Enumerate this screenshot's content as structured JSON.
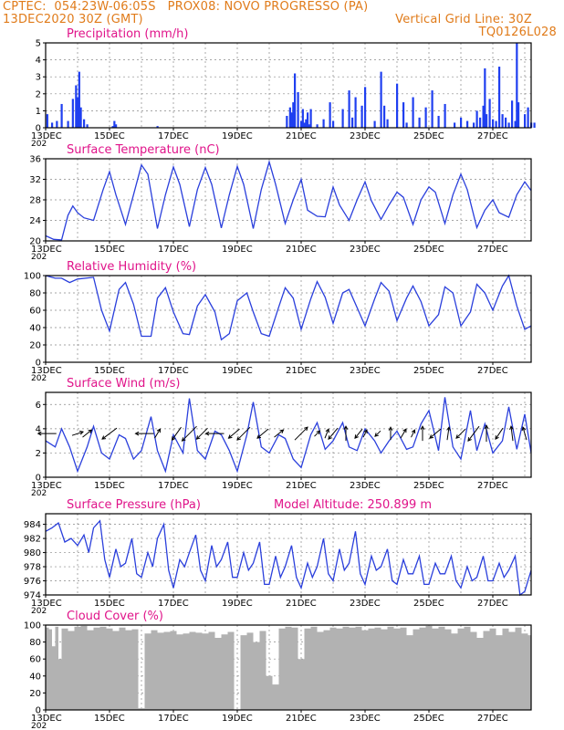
{
  "header": {
    "left_line1": "CPTEC:  054:23W-06:05S   PROX08: NOVO PROGRESSO (PA)",
    "left_line2": "13DEC2020 30Z (GMT)",
    "right_line2": "Vertical Grid Line: 30Z",
    "right_line3": "TQ0126L028"
  },
  "colors": {
    "header": "#e07b1a",
    "title": "#e0148a",
    "line": "#2a3fdc",
    "bar": "#1f3ff0",
    "cloud": "#b2b2b2",
    "grid": "#888888"
  },
  "x_axis": {
    "ticks": [
      "13DEC",
      "15DEC",
      "17DEC",
      "19DEC",
      "21DEC",
      "23DEC",
      "25DEC",
      "27DEC"
    ],
    "year_fragment": "202"
  },
  "panels": {
    "precip": {
      "title": "Precipitation (mm/h)",
      "yticks": [
        "0",
        "1",
        "2",
        "3",
        "4",
        "5"
      ]
    },
    "temp": {
      "title": "Surface Temperature (nC)",
      "yticks": [
        "20",
        "24",
        "28",
        "32",
        "36"
      ]
    },
    "rh": {
      "title": "Relative Humidity (%)",
      "yticks": [
        "0",
        "20",
        "40",
        "60",
        "80",
        "100"
      ]
    },
    "wind": {
      "title": "Surface Wind (m/s)",
      "yticks": [
        "0",
        "2",
        "4",
        "6"
      ]
    },
    "pres": {
      "title": "Surface Pressure (hPa)",
      "subtitle": "Model Altitude: 250.899 m",
      "yticks": [
        "974",
        "976",
        "978",
        "980",
        "982",
        "984"
      ]
    },
    "cloud": {
      "title": "Cloud Cover (%)",
      "yticks": [
        "0",
        "20",
        "40",
        "60",
        "80",
        "100"
      ]
    }
  },
  "chart_data": [
    {
      "type": "bar",
      "name": "precipitation",
      "x_unit": "days since 13DEC 00Z",
      "ylim": [
        0,
        5
      ],
      "x": [
        0.05,
        0.2,
        0.35,
        0.5,
        0.7,
        0.85,
        0.95,
        1.0,
        1.05,
        1.1,
        1.2,
        1.3,
        2.1,
        2.15,
        2.2,
        3.5,
        7.55,
        7.65,
        7.7,
        7.75,
        7.8,
        7.9,
        8.0,
        8.05,
        8.1,
        8.15,
        8.2,
        8.25,
        8.3,
        8.5,
        8.7,
        8.9,
        9.0,
        9.3,
        9.5,
        9.6,
        9.7,
        9.9,
        10.0,
        10.3,
        10.5,
        10.6,
        10.7,
        11.0,
        11.2,
        11.3,
        11.5,
        11.7,
        11.9,
        12.1,
        12.3,
        12.5,
        12.8,
        13.0,
        13.2,
        13.4,
        13.5,
        13.6,
        13.7,
        13.75,
        13.8,
        13.9,
        14.0,
        14.1,
        14.2,
        14.3,
        14.4,
        14.5,
        14.6,
        14.7,
        14.75,
        14.8,
        15.0,
        15.1,
        15.2,
        15.3
      ],
      "values": [
        0.8,
        0.3,
        0.4,
        1.4,
        0.4,
        1.7,
        2.5,
        1.8,
        3.3,
        1.2,
        0.5,
        0.2,
        0.1,
        0.4,
        0.2,
        0.1,
        0.7,
        1.2,
        0.9,
        1.5,
        3.2,
        2.1,
        0.4,
        1.1,
        0.3,
        0.5,
        0.9,
        0.2,
        1.1,
        0.2,
        0.5,
        1.5,
        0.4,
        1.1,
        2.2,
        0.6,
        1.8,
        1.3,
        2.4,
        0.4,
        3.3,
        1.3,
        0.5,
        2.6,
        1.5,
        0.3,
        1.8,
        0.6,
        1.2,
        2.2,
        0.7,
        1.4,
        0.3,
        0.6,
        0.4,
        0.3,
        1.0,
        0.6,
        1.3,
        3.5,
        0.8,
        1.7,
        0.5,
        0.4,
        3.6,
        0.8,
        0.6,
        0.3,
        1.6,
        0.4,
        5.0,
        1.5,
        0.8,
        1.2,
        0.3,
        0.3
      ]
    },
    {
      "type": "line",
      "name": "surface temperature",
      "x_unit": "days since 13DEC 00Z",
      "ylim": [
        20,
        36
      ],
      "x": [
        0,
        0.25,
        0.5,
        0.7,
        0.85,
        1.0,
        1.2,
        1.5,
        1.8,
        2.0,
        2.2,
        2.5,
        2.75,
        3.0,
        3.2,
        3.5,
        3.75,
        4.0,
        4.2,
        4.5,
        4.75,
        5.0,
        5.2,
        5.5,
        5.75,
        6.0,
        6.2,
        6.5,
        6.75,
        7.0,
        7.2,
        7.5,
        7.75,
        8.0,
        8.2,
        8.5,
        8.75,
        9.0,
        9.2,
        9.5,
        9.75,
        10.0,
        10.2,
        10.5,
        10.75,
        11.0,
        11.2,
        11.5,
        11.75,
        12.0,
        12.2,
        12.5,
        12.75,
        13.0,
        13.2,
        13.5,
        13.75,
        14.0,
        14.2,
        14.5,
        14.75,
        15.0,
        15.2
      ],
      "values": [
        21,
        20.3,
        20.2,
        25,
        26.8,
        25.5,
        24.5,
        24,
        30,
        33.5,
        29,
        23.2,
        29,
        34.8,
        33,
        22.4,
        29,
        34.4,
        31,
        22.8,
        30,
        34.3,
        31,
        22.5,
        29,
        34.5,
        31,
        22.4,
        30,
        35.4,
        31,
        23.4,
        28,
        32,
        26,
        24.8,
        24.7,
        30.5,
        27,
        24,
        28,
        31.5,
        27.8,
        24.2,
        27,
        29.5,
        28.5,
        23.2,
        28,
        30.5,
        29.5,
        23.4,
        29,
        33,
        30,
        22.6,
        26,
        28,
        25.5,
        24.6,
        29,
        31.5,
        29.8
      ]
    },
    {
      "type": "line",
      "name": "relative humidity",
      "x_unit": "days since 13DEC 00Z",
      "ylim": [
        0,
        100
      ],
      "x": [
        0,
        0.3,
        0.5,
        0.75,
        1.0,
        1.5,
        1.75,
        2.0,
        2.3,
        2.5,
        2.75,
        3.0,
        3.3,
        3.5,
        3.75,
        4.0,
        4.3,
        4.5,
        4.75,
        5.0,
        5.3,
        5.5,
        5.75,
        6.0,
        6.3,
        6.5,
        6.75,
        7.0,
        7.3,
        7.5,
        7.75,
        8.0,
        8.3,
        8.5,
        8.75,
        9.0,
        9.3,
        9.5,
        9.75,
        10.0,
        10.3,
        10.5,
        10.75,
        11.0,
        11.3,
        11.5,
        11.75,
        12.0,
        12.3,
        12.5,
        12.75,
        13.0,
        13.3,
        13.5,
        13.75,
        14.0,
        14.3,
        14.5,
        14.75,
        15.0,
        15.2
      ],
      "values": [
        100,
        97,
        97,
        92,
        96,
        98,
        60,
        36,
        84,
        92,
        67,
        30,
        30,
        74,
        86,
        58,
        33,
        32,
        65,
        78,
        58,
        26,
        33,
        71,
        80,
        58,
        33,
        30,
        64,
        86,
        74,
        38,
        73,
        93,
        75,
        45,
        80,
        84,
        63,
        42,
        73,
        92,
        82,
        48,
        74,
        88,
        70,
        42,
        55,
        87,
        80,
        42,
        58,
        90,
        80,
        60,
        88,
        100,
        65,
        38,
        42
      ]
    },
    {
      "type": "line",
      "name": "surface wind speed",
      "x_unit": "days since 13DEC 00Z",
      "ylim": [
        0,
        7
      ],
      "x": [
        0,
        0.3,
        0.5,
        0.75,
        1.0,
        1.3,
        1.5,
        1.75,
        2.0,
        2.3,
        2.5,
        2.75,
        3.0,
        3.3,
        3.5,
        3.75,
        4.0,
        4.3,
        4.5,
        4.75,
        5.0,
        5.3,
        5.5,
        5.75,
        6.0,
        6.3,
        6.5,
        6.75,
        7.0,
        7.3,
        7.5,
        7.75,
        8.0,
        8.3,
        8.5,
        8.75,
        9.0,
        9.3,
        9.5,
        9.75,
        10.0,
        10.3,
        10.5,
        10.75,
        11.0,
        11.3,
        11.5,
        11.75,
        12.0,
        12.3,
        12.5,
        12.75,
        13.0,
        13.3,
        13.5,
        13.75,
        14.0,
        14.3,
        14.5,
        14.75,
        15.0,
        15.2
      ],
      "values": [
        3,
        2.5,
        4,
        2.5,
        0.5,
        2.5,
        4.2,
        2,
        1.5,
        3.5,
        3.2,
        1.5,
        2.2,
        5,
        2.2,
        0.5,
        3.5,
        2,
        6.5,
        2.2,
        1.5,
        3.8,
        3.5,
        2.2,
        0.5,
        3.5,
        6.2,
        2.5,
        2,
        3.5,
        3.2,
        1.5,
        0.8,
        3.5,
        4.5,
        2.3,
        3,
        4.5,
        2.5,
        2.2,
        4,
        3,
        2,
        3,
        3.8,
        2.3,
        2.5,
        4.4,
        5.5,
        2.2,
        6.6,
        2.5,
        1.5,
        5.5,
        2.2,
        4.4,
        2,
        3,
        5.8,
        2.3,
        5.2,
        2
      ],
      "arrows_x": [
        0.05,
        1.0,
        1.3,
        2.0,
        3.1,
        3.5,
        4.1,
        4.5,
        4.9,
        5.3,
        5.9,
        6.2,
        6.8,
        7.3,
        8.0,
        8.5,
        8.8,
        9.0,
        9.4,
        9.8,
        10.0,
        10.4,
        10.8,
        11.2,
        11.5,
        11.8,
        12.2,
        12.6,
        13.0,
        13.4,
        13.8,
        14.2,
        14.6,
        15.0
      ],
      "arrows_u": [
        -1,
        0.6,
        0.5,
        -0.8,
        -1,
        0.3,
        -0.5,
        -0.8,
        -0.6,
        -1,
        -0.6,
        -0.7,
        -0.6,
        0.5,
        0.7,
        0.3,
        0.2,
        -0.5,
        0,
        -0.4,
        0.2,
        -0.3,
        0,
        0.3,
        0.2,
        0,
        -0.6,
        0.1,
        -0.5,
        -0.6,
        0,
        -0.4,
        -0.1,
        -0.2
      ],
      "arrows_v": [
        0,
        0.2,
        0.4,
        -0.6,
        0,
        0.5,
        -0.7,
        -0.8,
        -0.6,
        0,
        -0.5,
        -0.7,
        -0.5,
        0.4,
        0.7,
        0.3,
        0.5,
        -0.6,
        0.8,
        -0.5,
        0.4,
        -0.3,
        0.7,
        0.5,
        0.4,
        0.8,
        -0.5,
        0.7,
        -0.5,
        -0.8,
        0.9,
        -0.6,
        0.8,
        0.7
      ]
    },
    {
      "type": "line",
      "name": "surface pressure",
      "x_unit": "days since 13DEC 00Z",
      "ylim": [
        974,
        985.5
      ],
      "x": [
        0,
        0.2,
        0.4,
        0.6,
        0.8,
        1.0,
        1.2,
        1.35,
        1.5,
        1.7,
        1.85,
        2.0,
        2.2,
        2.35,
        2.5,
        2.7,
        2.85,
        3.0,
        3.2,
        3.35,
        3.5,
        3.7,
        3.85,
        4.0,
        4.2,
        4.35,
        4.5,
        4.7,
        4.85,
        5.0,
        5.2,
        5.35,
        5.5,
        5.7,
        5.85,
        6.0,
        6.2,
        6.35,
        6.5,
        6.7,
        6.85,
        7.0,
        7.2,
        7.35,
        7.5,
        7.7,
        7.85,
        8.0,
        8.2,
        8.35,
        8.5,
        8.7,
        8.85,
        9.0,
        9.2,
        9.35,
        9.5,
        9.7,
        9.85,
        10.0,
        10.2,
        10.35,
        10.5,
        10.7,
        10.85,
        11.0,
        11.2,
        11.35,
        11.5,
        11.7,
        11.85,
        12.0,
        12.2,
        12.35,
        12.5,
        12.7,
        12.85,
        13.0,
        13.2,
        13.35,
        13.5,
        13.7,
        13.85,
        14.0,
        14.2,
        14.35,
        14.5,
        14.7,
        14.85,
        15.0,
        15.2
      ],
      "values": [
        983,
        983.5,
        984.2,
        981.5,
        982,
        981,
        982.5,
        980,
        983.5,
        984.5,
        979,
        976.5,
        980.5,
        978,
        978.5,
        982,
        977,
        976.5,
        980,
        978,
        982,
        984,
        977.5,
        975,
        979,
        978,
        980,
        982.5,
        977.5,
        976,
        981,
        978,
        979,
        981.5,
        976.5,
        976.5,
        980,
        977.5,
        978.5,
        981.5,
        975.5,
        975.5,
        979.5,
        976.5,
        978,
        981,
        976.5,
        975,
        978.5,
        976.5,
        978,
        982,
        977,
        976,
        980.5,
        977.5,
        978.5,
        983,
        977,
        975.5,
        979.5,
        977.5,
        978,
        980.5,
        976,
        975.5,
        979,
        977,
        977,
        979.5,
        975.5,
        975.5,
        978.5,
        977,
        977,
        979.5,
        976,
        975,
        978,
        976,
        976.5,
        979.5,
        976,
        976,
        978.5,
        976.5,
        977.5,
        979.5,
        974,
        974.5,
        977.5
      ]
    },
    {
      "type": "area",
      "name": "cloud cover",
      "x_unit": "days since 13DEC 00Z",
      "ylim": [
        0,
        100
      ],
      "x": [
        0,
        0.1,
        0.2,
        0.3,
        0.4,
        0.5,
        0.7,
        0.9,
        1.1,
        1.3,
        1.5,
        1.7,
        1.9,
        2.1,
        2.3,
        2.5,
        2.7,
        2.9,
        3.1,
        3.3,
        3.5,
        3.7,
        3.9,
        4.1,
        4.3,
        4.5,
        4.7,
        4.9,
        5.1,
        5.3,
        5.5,
        5.7,
        5.9,
        6.1,
        6.3,
        6.5,
        6.7,
        6.9,
        7.1,
        7.3,
        7.5,
        7.7,
        7.9,
        8.1,
        8.3,
        8.5,
        8.7,
        8.9,
        9.1,
        9.3,
        9.5,
        9.7,
        9.9,
        10.1,
        10.3,
        10.5,
        10.7,
        10.9,
        11.1,
        11.3,
        11.5,
        11.7,
        11.9,
        12.1,
        12.3,
        12.5,
        12.7,
        12.9,
        13.1,
        13.3,
        13.5,
        13.7,
        13.9,
        14.1,
        14.3,
        14.5,
        14.7,
        14.9,
        15.1,
        15.2
      ],
      "values": [
        97,
        95,
        75,
        98,
        60,
        96,
        93,
        98,
        99,
        94,
        97,
        98,
        96,
        93,
        97,
        94,
        95,
        2,
        90,
        94,
        91,
        92,
        93,
        89,
        90,
        92,
        91,
        90,
        92,
        85,
        89,
        92,
        0,
        88,
        91,
        80,
        93,
        40,
        30,
        96,
        98,
        97,
        60,
        96,
        98,
        92,
        94,
        97,
        96,
        98,
        97,
        98,
        94,
        96,
        97,
        95,
        98,
        96,
        97,
        88,
        95,
        97,
        99,
        96,
        98,
        95,
        90,
        96,
        98,
        92,
        85,
        93,
        96,
        88,
        96,
        92,
        97,
        90,
        88,
        95
      ]
    }
  ]
}
